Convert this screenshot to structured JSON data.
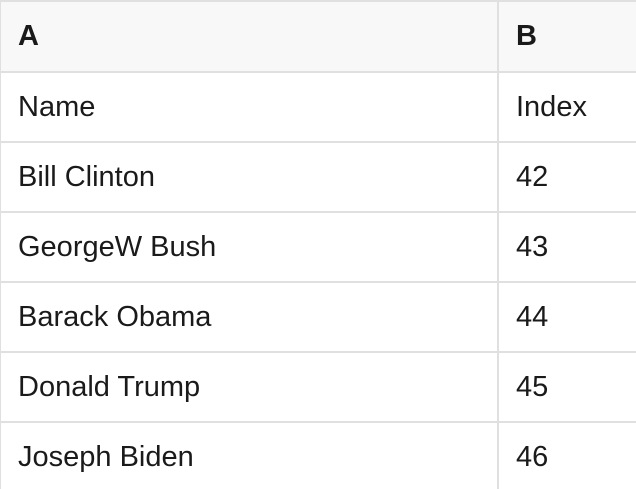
{
  "table": {
    "column_headers": [
      "A",
      "B"
    ],
    "rows": [
      [
        "Name",
        "Index"
      ],
      [
        "Bill Clinton",
        42
      ],
      [
        "GeorgeW Bush",
        43
      ],
      [
        "Barack Obama",
        44
      ],
      [
        "Donald Trump",
        45
      ],
      [
        "Joseph Biden",
        46
      ]
    ]
  },
  "colors": {
    "header_background": "#f8f8f8",
    "grid_border": "#e0e0e0",
    "cell_background": "#ffffff",
    "text": "#1a1a1a"
  }
}
